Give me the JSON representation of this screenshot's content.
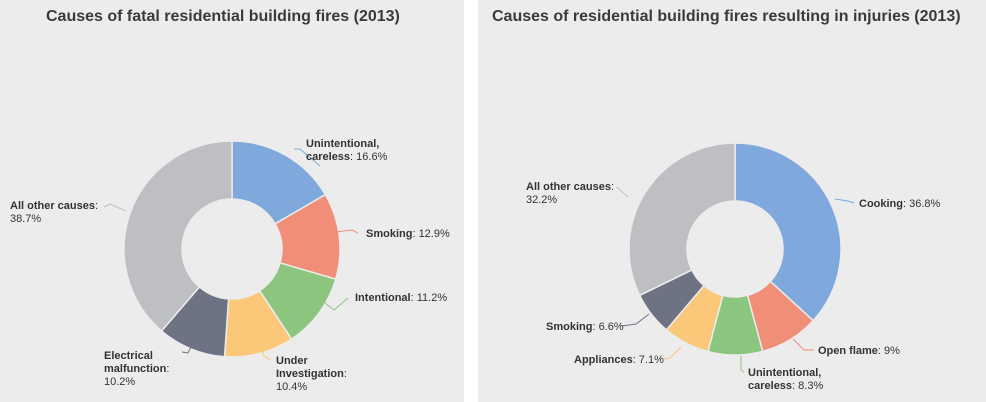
{
  "colors": {
    "panel_bg": "#ececec",
    "blue": "#7fa8dc",
    "salmon": "#f08e78",
    "green": "#8cc57e",
    "yellow": "#fac878",
    "slate": "#6e7384",
    "gray": "#bdbfc3"
  },
  "chart_data": [
    {
      "type": "pie",
      "style": "donut",
      "title": "Causes of fatal residential building fires (2013)",
      "unit": "%",
      "slices": [
        {
          "label": "Unintentional, careless",
          "value": 16.6,
          "value_text": "16.6%",
          "color": "#7fa8dc"
        },
        {
          "label": "Smoking",
          "value": 12.9,
          "value_text": "12.9%",
          "color": "#f08e78"
        },
        {
          "label": "Intentional",
          "value": 11.2,
          "value_text": "11.2%",
          "color": "#8cc57e"
        },
        {
          "label": "Under investigation",
          "value": 10.4,
          "value_text": "10.4%",
          "color": "#fac878"
        },
        {
          "label": "Electrical malfunction",
          "value": 10.2,
          "value_text": "10.2%",
          "color": "#6e7384"
        },
        {
          "label": "All other causes",
          "value": 38.7,
          "value_text": "38.7%",
          "color": "#bdbfc3"
        }
      ]
    },
    {
      "type": "pie",
      "style": "donut",
      "title": "Causes of residential building fires resulting in injuries (2013)",
      "unit": "%",
      "slices": [
        {
          "label": "Cooking",
          "value": 36.8,
          "value_text": "36.8%",
          "color": "#7fa8dc"
        },
        {
          "label": "Open flame",
          "value": 9,
          "value_text": "9%",
          "color": "#f08e78"
        },
        {
          "label": "Unintentional, careless",
          "value": 8.3,
          "value_text": "8.3%",
          "color": "#8cc57e"
        },
        {
          "label": "Appliances",
          "value": 7.1,
          "value_text": "7.1%",
          "color": "#fac878"
        },
        {
          "label": "Smoking",
          "value": 6.6,
          "value_text": "6.6%",
          "color": "#6e7384"
        },
        {
          "label": "All other causes",
          "value": 32.2,
          "value_text": "32.2%",
          "color": "#bdbfc3"
        }
      ]
    }
  ]
}
